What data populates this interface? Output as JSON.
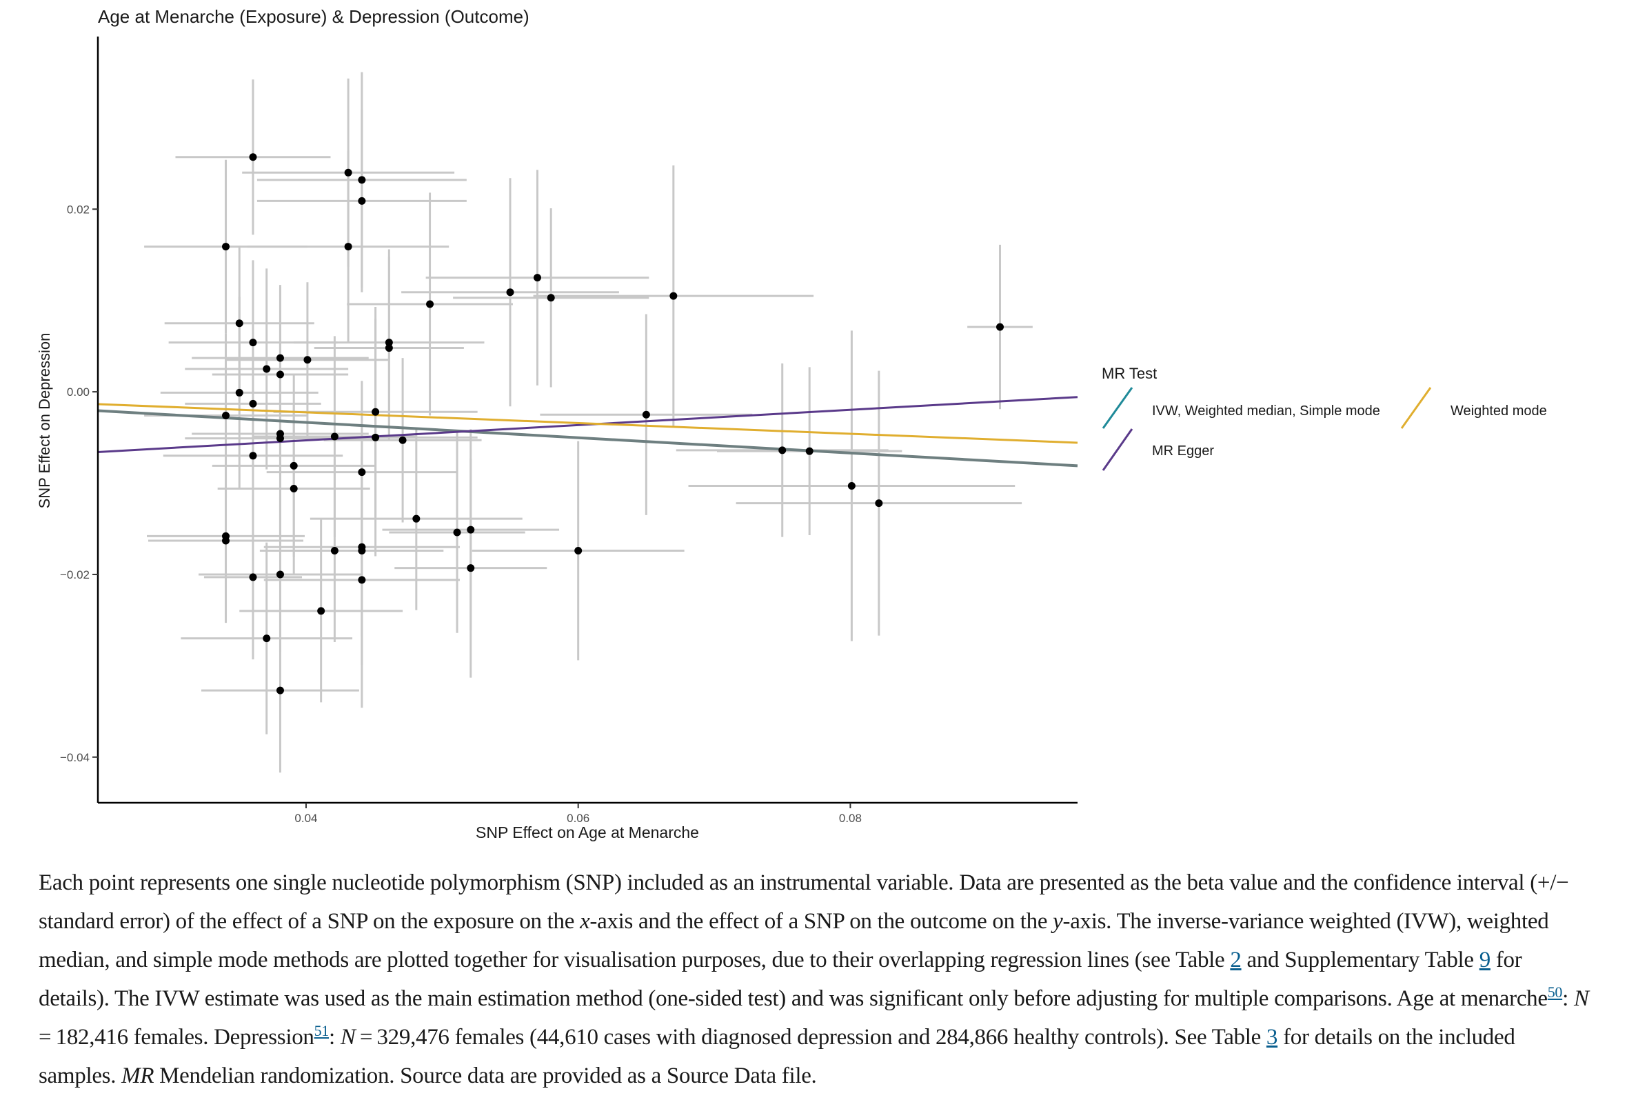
{
  "chart_data": {
    "type": "scatter",
    "title": "Age at Menarche (Exposure) & Depression (Outcome)",
    "xlabel": "SNP Effect on Age at Menarche",
    "ylabel": "SNP Effect on Depression",
    "xlim": [
      0.0247,
      0.0967
    ],
    "ylim": [
      -0.045,
      0.0389
    ],
    "xticks": [
      {
        "v": 0.04,
        "label": "0.04"
      },
      {
        "v": 0.06,
        "label": "0.06"
      },
      {
        "v": 0.08,
        "label": "0.08"
      }
    ],
    "yticks": [
      {
        "v": 0.02,
        "label": "0.02"
      },
      {
        "v": 0.0,
        "label": "0.00"
      },
      {
        "v": -0.02,
        "label": "−0.02"
      },
      {
        "v": -0.04,
        "label": "−0.04"
      }
    ],
    "grid": false,
    "points": [
      {
        "x": 0.0361,
        "y": 0.0257,
        "sex": 0.0057,
        "sey": 0.0085
      },
      {
        "x": 0.0431,
        "y": 0.024,
        "sex": 0.0078,
        "sey": 0.0103
      },
      {
        "x": 0.0441,
        "y": 0.0232,
        "sex": 0.0077,
        "sey": 0.0118
      },
      {
        "x": 0.0441,
        "y": 0.0209,
        "sex": 0.0077,
        "sey": 0.01
      },
      {
        "x": 0.0341,
        "y": 0.0159,
        "sex": 0.006,
        "sey": 0.0095
      },
      {
        "x": 0.0431,
        "y": 0.0159,
        "sex": 0.0074,
        "sey": 0.0105
      },
      {
        "x": 0.055,
        "y": 0.0109,
        "sex": 0.008,
        "sey": 0.0125
      },
      {
        "x": 0.057,
        "y": 0.0125,
        "sex": 0.0082,
        "sey": 0.0118
      },
      {
        "x": 0.058,
        "y": 0.0103,
        "sex": 0.0072,
        "sey": 0.0098
      },
      {
        "x": 0.0491,
        "y": 0.0096,
        "sex": 0.0061,
        "sey": 0.0122
      },
      {
        "x": 0.067,
        "y": 0.0105,
        "sex": 0.0103,
        "sey": 0.0143
      },
      {
        "x": 0.091,
        "y": 0.0071,
        "sex": 0.0024,
        "sey": 0.009
      },
      {
        "x": 0.0351,
        "y": 0.0075,
        "sex": 0.0055,
        "sey": 0.0085
      },
      {
        "x": 0.0361,
        "y": 0.0054,
        "sex": 0.0062,
        "sey": 0.009
      },
      {
        "x": 0.0461,
        "y": 0.0054,
        "sex": 0.007,
        "sey": 0.0102
      },
      {
        "x": 0.0461,
        "y": 0.0048,
        "sex": 0.0055,
        "sey": 0.01
      },
      {
        "x": 0.0381,
        "y": 0.0037,
        "sex": 0.0065,
        "sey": 0.008
      },
      {
        "x": 0.0401,
        "y": 0.0035,
        "sex": 0.006,
        "sey": 0.0085
      },
      {
        "x": 0.0371,
        "y": 0.0025,
        "sex": 0.006,
        "sey": 0.011
      },
      {
        "x": 0.0381,
        "y": 0.0019,
        "sex": 0.005,
        "sey": 0.0095
      },
      {
        "x": 0.0351,
        "y": -0.0001,
        "sex": 0.0058,
        "sey": 0.0105
      },
      {
        "x": 0.0361,
        "y": -0.0013,
        "sex": 0.005,
        "sey": 0.009
      },
      {
        "x": 0.0451,
        "y": -0.0022,
        "sex": 0.0075,
        "sey": 0.0115
      },
      {
        "x": 0.0341,
        "y": -0.0026,
        "sex": 0.006,
        "sey": 0.009
      },
      {
        "x": 0.065,
        "y": -0.0025,
        "sex": 0.0078,
        "sey": 0.011
      },
      {
        "x": 0.0381,
        "y": -0.0046,
        "sex": 0.0065,
        "sey": 0.012
      },
      {
        "x": 0.0381,
        "y": -0.0051,
        "sex": 0.007,
        "sey": 0.0105
      },
      {
        "x": 0.0421,
        "y": -0.0049,
        "sex": 0.006,
        "sey": 0.011
      },
      {
        "x": 0.0451,
        "y": -0.005,
        "sex": 0.0075,
        "sey": 0.013
      },
      {
        "x": 0.0471,
        "y": -0.0053,
        "sex": 0.0058,
        "sey": 0.009
      },
      {
        "x": 0.0361,
        "y": -0.007,
        "sex": 0.0066,
        "sey": 0.0115
      },
      {
        "x": 0.0391,
        "y": -0.0081,
        "sex": 0.006,
        "sey": 0.01
      },
      {
        "x": 0.075,
        "y": -0.0064,
        "sex": 0.0078,
        "sey": 0.0095
      },
      {
        "x": 0.077,
        "y": -0.0065,
        "sex": 0.0068,
        "sey": 0.0092
      },
      {
        "x": 0.0441,
        "y": -0.0088,
        "sex": 0.007,
        "sey": 0.01
      },
      {
        "x": 0.0391,
        "y": -0.0106,
        "sex": 0.0056,
        "sey": 0.0094
      },
      {
        "x": 0.0801,
        "y": -0.0103,
        "sex": 0.012,
        "sey": 0.017
      },
      {
        "x": 0.0821,
        "y": -0.0122,
        "sex": 0.0105,
        "sey": 0.0145
      },
      {
        "x": 0.0481,
        "y": -0.0139,
        "sex": 0.0078,
        "sey": 0.01
      },
      {
        "x": 0.0511,
        "y": -0.0154,
        "sex": 0.005,
        "sey": 0.011
      },
      {
        "x": 0.0521,
        "y": -0.0151,
        "sex": 0.0065,
        "sey": 0.011
      },
      {
        "x": 0.0341,
        "y": -0.0158,
        "sex": 0.0058,
        "sey": 0.009
      },
      {
        "x": 0.0341,
        "y": -0.0163,
        "sex": 0.0057,
        "sey": 0.009
      },
      {
        "x": 0.0421,
        "y": -0.0174,
        "sex": 0.0055,
        "sey": 0.01
      },
      {
        "x": 0.0441,
        "y": -0.017,
        "sex": 0.0072,
        "sey": 0.0098
      },
      {
        "x": 0.0441,
        "y": -0.0174,
        "sex": 0.006,
        "sey": 0.0125
      },
      {
        "x": 0.06,
        "y": -0.0174,
        "sex": 0.0078,
        "sey": 0.012
      },
      {
        "x": 0.0521,
        "y": -0.0193,
        "sex": 0.0056,
        "sey": 0.012
      },
      {
        "x": 0.0381,
        "y": -0.02,
        "sex": 0.006,
        "sey": 0.0085
      },
      {
        "x": 0.0361,
        "y": -0.0203,
        "sex": 0.0036,
        "sey": 0.009
      },
      {
        "x": 0.0441,
        "y": -0.0206,
        "sex": 0.0072,
        "sey": 0.014
      },
      {
        "x": 0.0411,
        "y": -0.024,
        "sex": 0.006,
        "sey": 0.01
      },
      {
        "x": 0.0371,
        "y": -0.027,
        "sex": 0.0063,
        "sey": 0.0105
      },
      {
        "x": 0.0381,
        "y": -0.0327,
        "sex": 0.0058,
        "sey": 0.009
      }
    ],
    "lines": [
      {
        "name": "IVW, Weighted median, Simple mode",
        "color": "#6e7f80",
        "color_legend": "#1f8a99",
        "intercept": 0.0,
        "slope": -0.0838,
        "x0": 0.0247,
        "x1": 0.0967
      },
      {
        "name": "MR Egger",
        "color": "#5a3a8a",
        "intercept": -0.00866,
        "slope": 0.0836,
        "x0": 0.0247,
        "x1": 0.0967
      },
      {
        "name": "Weighted mode",
        "color": "#e0ae2f",
        "intercept": 0.0001,
        "slope": -0.0587,
        "x0": 0.0247,
        "x1": 0.0967
      }
    ],
    "legend": {
      "title": "MR Test",
      "placement": "right",
      "items": [
        {
          "label": "IVW, Weighted median, Simple mode",
          "color": "#1f8a99"
        },
        {
          "label": "MR Egger",
          "color": "#5a3a8a"
        },
        {
          "label": "Weighted mode",
          "color": "#e0ae2f"
        }
      ]
    },
    "point_color": "#000000",
    "errorbar_color": "#c8c8c8"
  },
  "caption": {
    "s1": "Each point represents one single nucleotide polymorphism (SNP) included as an instrumental variable. Data are presented as the beta value and the confidence interval (+/− standard error) of the effect of a SNP on the exposure on the ",
    "x_italic": "x",
    "s2": "-axis and the effect of a SNP on the outcome on the ",
    "y_italic": "y",
    "s3": "-axis. The inverse-variance weighted (IVW), weighted median, and simple mode methods are plotted together for visualisation purposes, due to their overlapping regression lines (see Table ",
    "link_table2": "2",
    "s4": " and Supplementary Table ",
    "link_supp9": "9",
    "s5": " for details). The IVW estimate was used as the main estimation method (one-sided test) and was significant only before adjusting for multiple comparisons. Age at menarche",
    "ref50": "50",
    "s6": ": ",
    "n1_italic": "N",
    "s7": " = 182,416 females. Depression",
    "ref51": "51",
    "s8": ": ",
    "n2_italic": "N",
    "s9": " = 329,476 females (44,610 cases with diagnosed depression and 284,866 healthy controls). See Table ",
    "link_table3": "3",
    "s10": " for details on the included samples. ",
    "mr_italic": "MR",
    "s11": " Mendelian randomization. Source data are provided as a Source Data file."
  }
}
